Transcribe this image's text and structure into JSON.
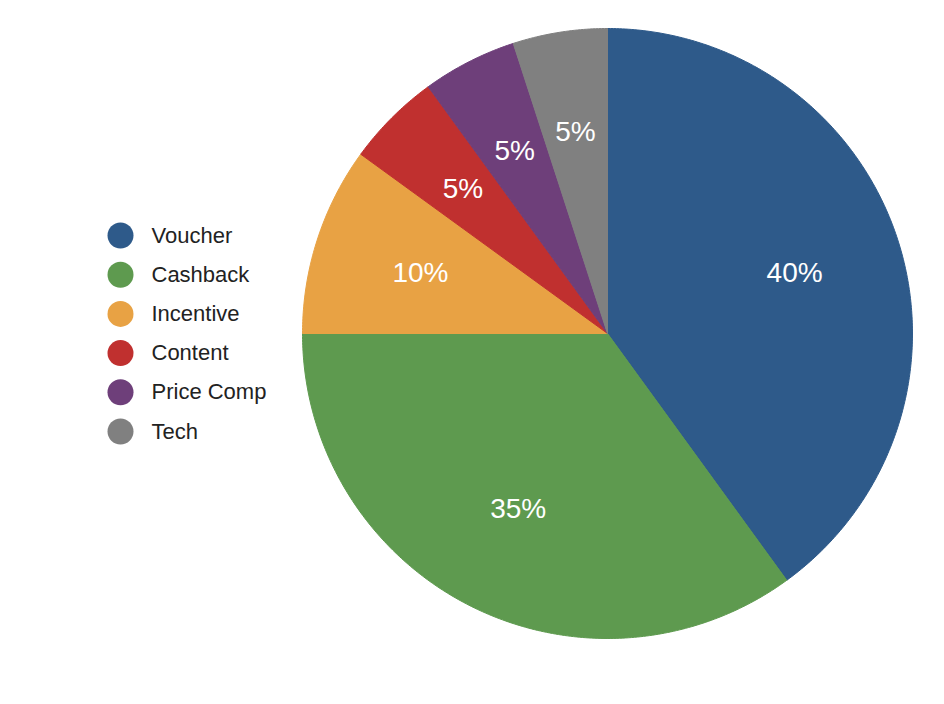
{
  "chart_data": {
    "type": "pie",
    "categories": [
      "Voucher",
      "Cashback",
      "Incentive",
      "Content",
      "Price Comp",
      "Tech"
    ],
    "values": [
      40,
      35,
      10,
      5,
      5,
      5
    ],
    "colors": [
      "#2e5a8a",
      "#5e9a4f",
      "#e8a244",
      "#c0302f",
      "#6e3f7a",
      "#808080"
    ],
    "data_labels": true,
    "value_labels": [
      "40%",
      "35%",
      "10%",
      "5%",
      "5%",
      "5%"
    ],
    "legend": "left"
  }
}
